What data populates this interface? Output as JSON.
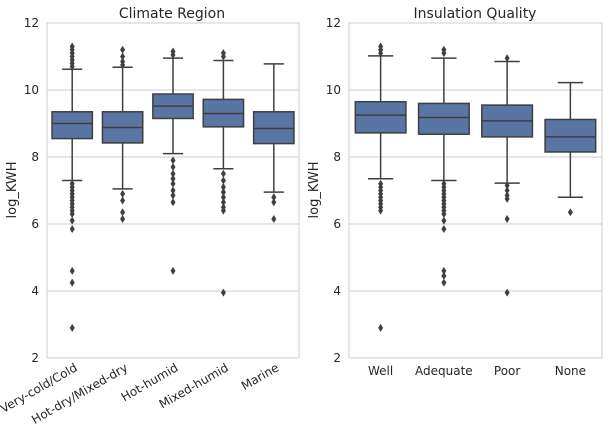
{
  "chart_data": [
    {
      "type": "box",
      "title": "Climate Region",
      "ylabel": "log_KWH",
      "xlabel": "",
      "ylim": [
        2,
        12
      ],
      "yticks": [
        "2",
        "4",
        "6",
        "8",
        "10",
        "12"
      ],
      "grid": "horizontal",
      "x_tick_rotation": "30deg",
      "box_color": "#5975a4",
      "categories": [
        "Very-cold/Cold",
        "Hot-dry/Mixed-dry",
        "Hot-humid",
        "Mixed-humid",
        "Marine"
      ],
      "boxes": [
        {
          "lo": 7.3,
          "q1": 8.55,
          "median": 9.0,
          "q3": 9.35,
          "hi": 10.62,
          "outliers": [
            11.3,
            11.2,
            11.1,
            11.0,
            10.9,
            10.8,
            10.7,
            7.2,
            7.1,
            7.0,
            6.9,
            6.8,
            6.7,
            6.6,
            6.5,
            6.4,
            6.3,
            6.1,
            5.85,
            4.6,
            4.25,
            2.9
          ]
        },
        {
          "lo": 7.05,
          "q1": 8.42,
          "median": 8.88,
          "q3": 9.35,
          "hi": 10.68,
          "outliers": [
            11.2,
            11.0,
            10.85,
            10.75,
            6.9,
            6.7,
            6.35,
            6.15
          ]
        },
        {
          "lo": 8.1,
          "q1": 9.15,
          "median": 9.52,
          "q3": 9.88,
          "hi": 10.95,
          "outliers": [
            11.15,
            11.05,
            7.9,
            7.7,
            7.5,
            7.35,
            7.2,
            7.0,
            6.85,
            6.65,
            4.6
          ]
        },
        {
          "lo": 7.65,
          "q1": 8.9,
          "median": 9.3,
          "q3": 9.72,
          "hi": 10.88,
          "outliers": [
            11.1,
            11.0,
            7.5,
            7.3,
            7.1,
            6.95,
            6.8,
            6.65,
            6.5,
            6.4,
            3.95
          ]
        },
        {
          "lo": 6.95,
          "q1": 8.4,
          "median": 8.85,
          "q3": 9.35,
          "hi": 10.78,
          "outliers": [
            6.8,
            6.65,
            6.15
          ]
        }
      ]
    },
    {
      "type": "box",
      "title": "Insulation Quality",
      "ylabel": "log_KWH",
      "xlabel": "",
      "ylim": [
        2,
        12
      ],
      "yticks": [
        "2",
        "4",
        "6",
        "8",
        "10",
        "12"
      ],
      "grid": "horizontal",
      "x_tick_rotation": "0deg",
      "box_color": "#5975a4",
      "categories": [
        "Well",
        "Adequate",
        "Poor",
        "None"
      ],
      "boxes": [
        {
          "lo": 7.35,
          "q1": 8.72,
          "median": 9.25,
          "q3": 9.65,
          "hi": 11.02,
          "outliers": [
            11.3,
            11.2,
            11.1,
            7.2,
            7.1,
            7.0,
            6.9,
            6.8,
            6.7,
            6.6,
            6.5,
            6.4,
            2.9
          ]
        },
        {
          "lo": 7.3,
          "q1": 8.68,
          "median": 9.18,
          "q3": 9.6,
          "hi": 10.95,
          "outliers": [
            11.2,
            11.1,
            7.2,
            7.1,
            7.0,
            6.9,
            6.8,
            6.7,
            6.6,
            6.5,
            6.4,
            6.3,
            6.1,
            5.85,
            4.6,
            4.45,
            4.25
          ]
        },
        {
          "lo": 7.22,
          "q1": 8.6,
          "median": 9.08,
          "q3": 9.55,
          "hi": 10.85,
          "outliers": [
            10.95,
            7.15,
            7.0,
            6.85,
            6.75,
            6.15,
            3.95
          ]
        },
        {
          "lo": 6.8,
          "q1": 8.15,
          "median": 8.6,
          "q3": 9.12,
          "hi": 10.22,
          "outliers": [
            6.35
          ]
        }
      ]
    }
  ]
}
